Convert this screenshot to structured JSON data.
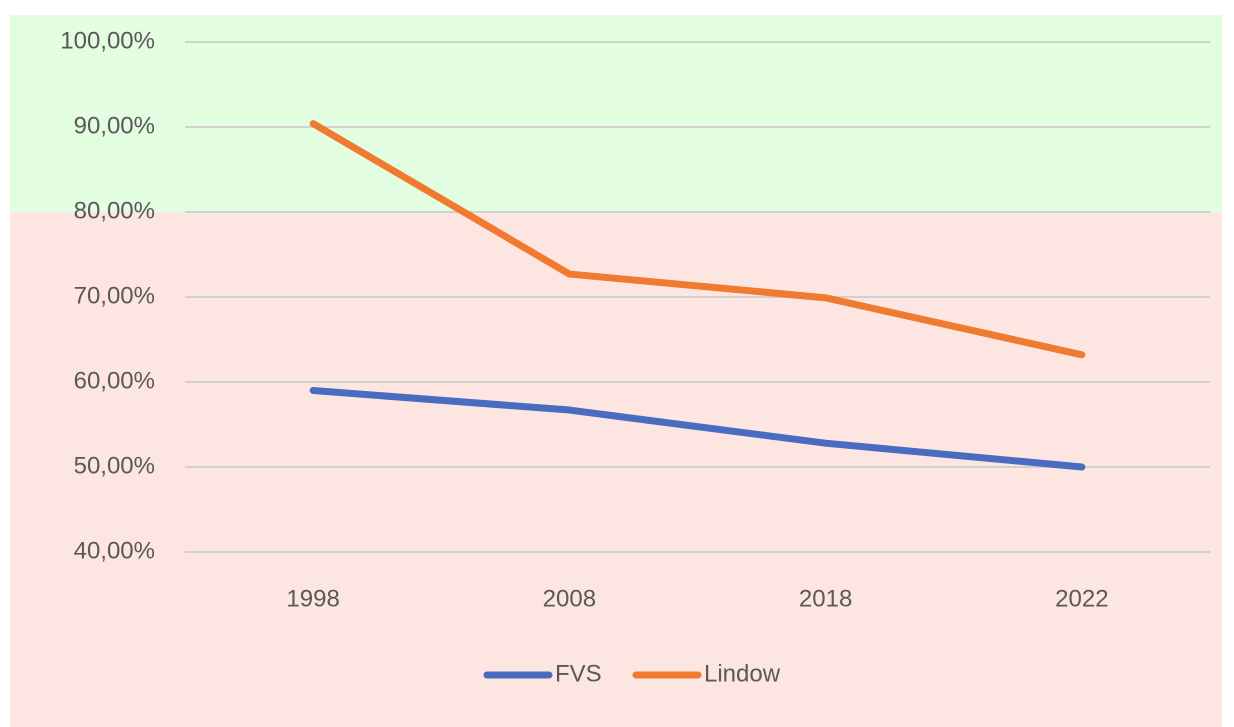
{
  "chart_data": {
    "type": "line",
    "categories": [
      "1998",
      "2008",
      "2018",
      "2022"
    ],
    "series": [
      {
        "name": "FVS",
        "color": "#4a6cc0",
        "values": [
          59.0,
          56.7,
          52.8,
          50.0
        ]
      },
      {
        "name": "Lindow",
        "color": "#ef7a30",
        "values": [
          90.4,
          72.7,
          69.9,
          63.2
        ]
      }
    ],
    "ylim": [
      40,
      100
    ],
    "yticks": [
      {
        "value": 40,
        "label": "40,00%"
      },
      {
        "value": 50,
        "label": "50,00%"
      },
      {
        "value": 60,
        "label": "60,00%"
      },
      {
        "value": 70,
        "label": "70,00%"
      },
      {
        "value": 80,
        "label": "80,00%"
      },
      {
        "value": 90,
        "label": "90,00%"
      },
      {
        "value": 100,
        "label": "100,00%"
      }
    ],
    "grid": true,
    "highlight_above": 80,
    "highlight_color": "#e3fde1",
    "background_color": "#fde6e1",
    "legend": "bottom"
  }
}
